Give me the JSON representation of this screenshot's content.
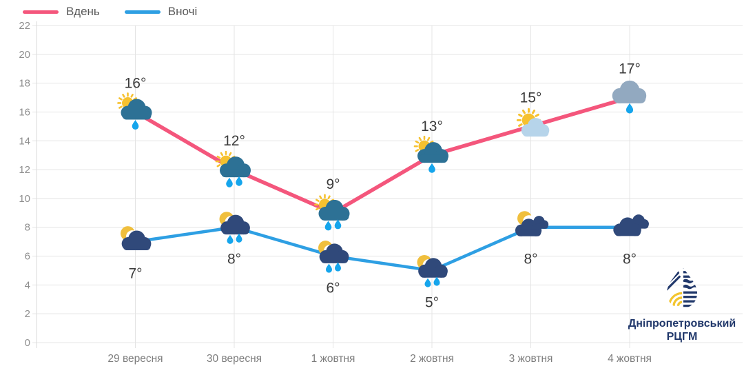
{
  "legend": {
    "items": [
      {
        "label": "Вдень",
        "color": "#F4567C"
      },
      {
        "label": "Вночі",
        "color": "#2E9FE3"
      }
    ]
  },
  "chart_data": {
    "type": "line",
    "title": "",
    "xlabel": "",
    "ylabel": "",
    "categories": [
      "29 вересня",
      "30 вересня",
      "1 жовтня",
      "2 жовтня",
      "3 жовтня",
      "4 жовтня"
    ],
    "series": [
      {
        "name": "Вдень",
        "color": "#F4567C",
        "values": [
          16,
          12,
          9,
          13,
          15,
          17
        ],
        "point_labels": [
          "16°",
          "12°",
          "9°",
          "13°",
          "15°",
          "17°"
        ],
        "icons": [
          "sun-rain-cloud-1",
          "sun-rain-cloud-2",
          "sun-rain-cloud-2",
          "sun-rain-cloud-1",
          "sun-cloud",
          "rain-cloud-1"
        ]
      },
      {
        "name": "Вночі",
        "color": "#2E9FE3",
        "values": [
          7,
          8,
          6,
          5,
          8,
          8
        ],
        "point_labels": [
          "7°",
          "8°",
          "6°",
          "5°",
          "8°",
          "8°"
        ],
        "icons": [
          "moon-cloud",
          "moon-rain-cloud-2",
          "moon-rain-cloud-2",
          "moon-rain-cloud-2",
          "moon-clouds",
          "clouds"
        ]
      }
    ],
    "ylim": [
      0,
      22
    ],
    "ytick_step": 2,
    "yticks": [
      0,
      2,
      4,
      6,
      8,
      10,
      12,
      14,
      16,
      18,
      20,
      22
    ],
    "grid": true,
    "legend_position": "top-left",
    "colors": {
      "sun": "#F6C12F",
      "moon": "#F0BF3D",
      "raindrop": "#15A5EC",
      "day_cloud": "#2D7195",
      "light_cloud": "#B6D4EA",
      "gray_cloud": "#92A9C0",
      "night_cloud": "#30497A",
      "grid": "#E4E4E4",
      "axis_text": "#8F8F8F",
      "temp_label": "#3B3B3B"
    }
  },
  "logo": {
    "line1": "Дніпропетровський",
    "line2": "РЦГМ",
    "color": "#21386B",
    "accent": "#F3C52F"
  }
}
